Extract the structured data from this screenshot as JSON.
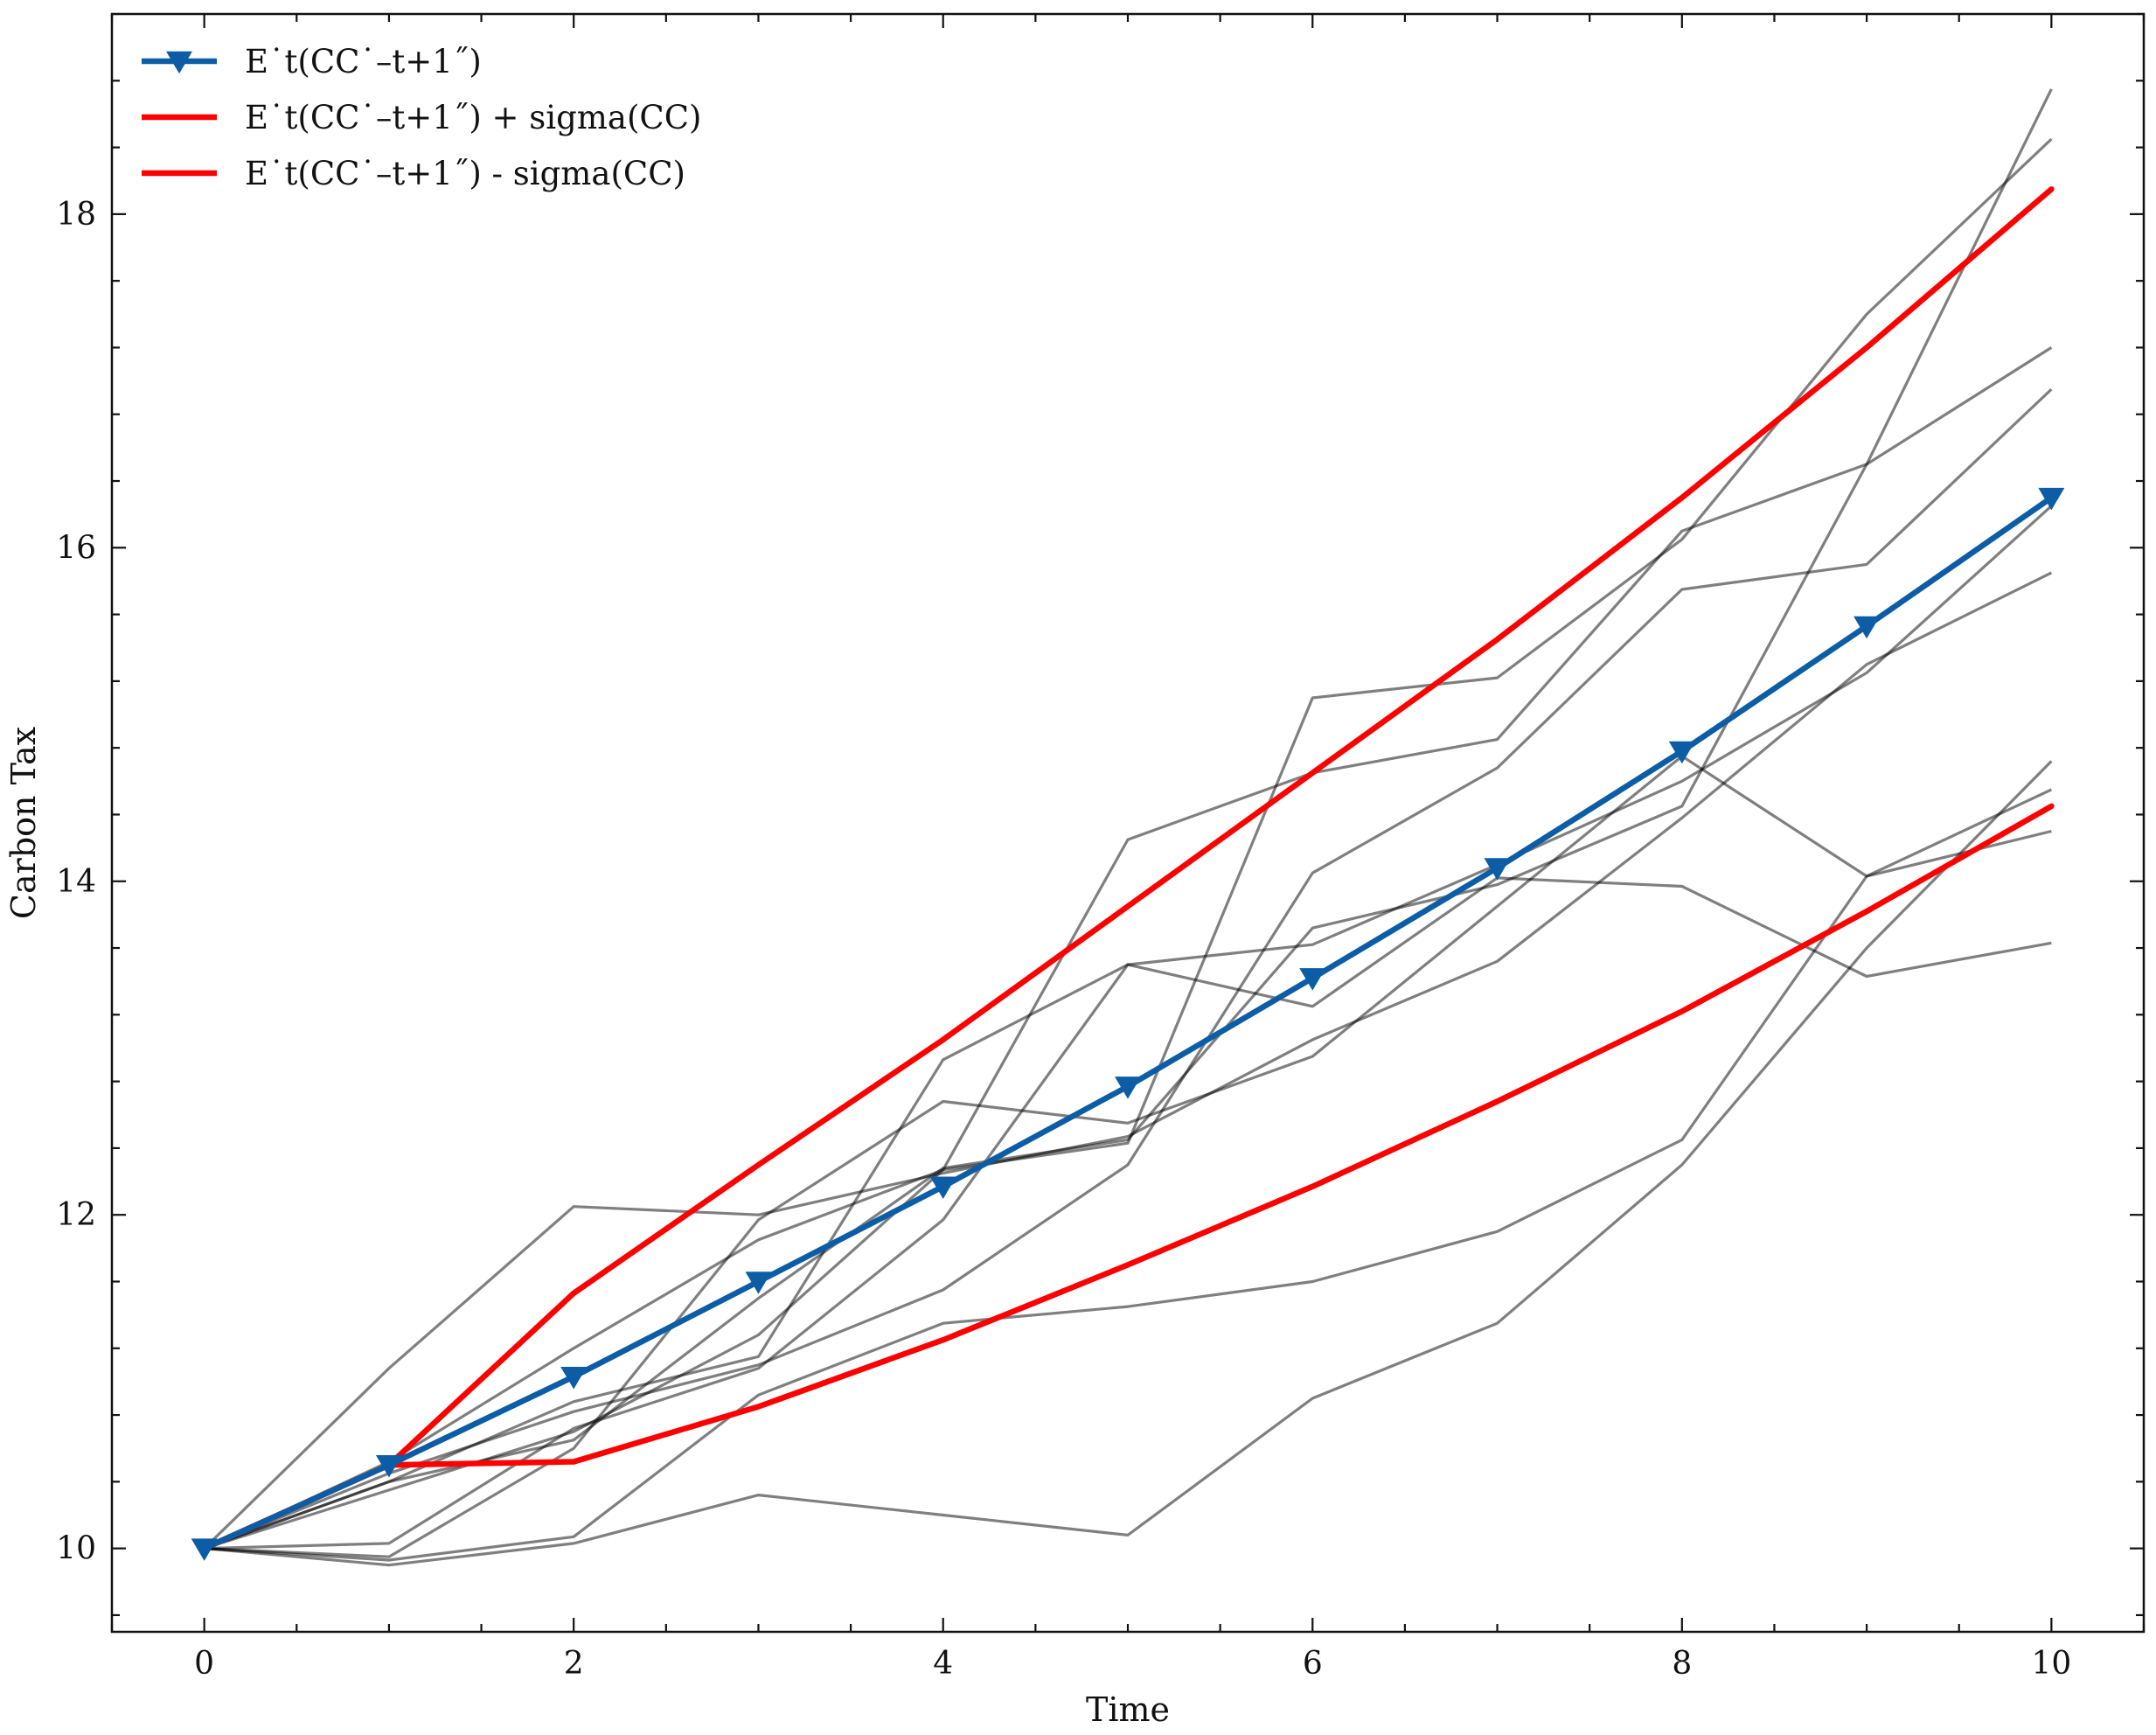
{
  "chart_data": {
    "type": "line",
    "title": "",
    "xlabel": "Time",
    "ylabel": "Carbon Tax",
    "xlim": [
      -0.5,
      10.5
    ],
    "ylim": [
      9.5,
      19.2
    ],
    "xticks": [
      0,
      2,
      4,
      6,
      8,
      10
    ],
    "yticks": [
      10,
      12,
      14,
      16,
      18
    ],
    "grid": false,
    "legend_position": "top-left",
    "x": [
      0,
      1,
      2,
      3,
      4,
      5,
      6,
      7,
      8,
      9,
      10
    ],
    "series": [
      {
        "name": "E˙t(CC˙–t+1˝)",
        "role": "mean",
        "color": "#0C5DA5",
        "marker": "triangle-down",
        "values": [
          10.0,
          10.5,
          11.03,
          11.6,
          12.17,
          12.77,
          13.42,
          14.08,
          14.78,
          15.53,
          16.3
        ]
      },
      {
        "name": "E˙t(CC˙–t+1˝) + sigma(CC)",
        "role": "upper",
        "color": "#FF0000",
        "values": [
          10.0,
          10.5,
          11.53,
          12.3,
          13.05,
          13.85,
          14.65,
          15.45,
          16.3,
          17.2,
          18.15
        ]
      },
      {
        "name": "E˙t(CC˙–t+1˝) - sigma(CC)",
        "role": "lower",
        "color": "#FF0000",
        "values": [
          10.0,
          10.5,
          10.52,
          10.85,
          11.25,
          11.7,
          12.17,
          12.68,
          13.22,
          13.82,
          14.45
        ]
      }
    ],
    "sample_paths": {
      "color": "#000000",
      "opacity": 0.5,
      "paths": [
        [
          10.0,
          11.08,
          12.05,
          12.0,
          12.25,
          12.47,
          13.05,
          13.52,
          14.38,
          15.3,
          15.85
        ],
        [
          10.0,
          10.52,
          11.2,
          11.85,
          12.27,
          14.25,
          14.65,
          14.85,
          16.1,
          16.5,
          17.2
        ],
        [
          10.0,
          10.45,
          10.82,
          11.1,
          11.55,
          12.3,
          14.05,
          14.68,
          15.75,
          15.9,
          16.95
        ],
        [
          10.0,
          10.4,
          10.88,
          11.15,
          12.93,
          13.5,
          13.25,
          14.02,
          13.97,
          13.43,
          13.63
        ],
        [
          10.0,
          10.35,
          10.7,
          11.28,
          12.27,
          12.43,
          15.1,
          15.22,
          16.05,
          17.4,
          18.45
        ],
        [
          10.0,
          9.93,
          10.07,
          10.92,
          11.35,
          11.45,
          11.6,
          11.9,
          12.45,
          14.03,
          14.3
        ],
        [
          10.0,
          9.95,
          10.6,
          11.97,
          12.68,
          12.55,
          12.95,
          13.85,
          14.75,
          14.03,
          14.55
        ],
        [
          10.0,
          10.03,
          10.72,
          11.08,
          11.97,
          13.5,
          13.62,
          14.1,
          14.6,
          15.25,
          16.25
        ],
        [
          10.0,
          10.4,
          10.65,
          11.5,
          12.28,
          12.45,
          13.72,
          13.98,
          14.45,
          16.5,
          18.75
        ],
        [
          10.0,
          9.9,
          10.03,
          10.32,
          10.2,
          10.08,
          10.9,
          11.35,
          12.3,
          13.6,
          14.72
        ]
      ]
    }
  }
}
